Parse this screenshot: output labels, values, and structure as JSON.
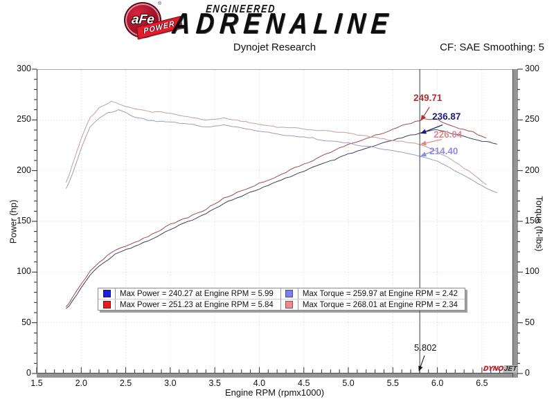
{
  "header": {
    "badge_text": "aFe",
    "badge_reg": "®",
    "banner_text": "POWER",
    "brand_line1": "ENGINEERED",
    "brand_line2": "ADRENALINE"
  },
  "subtitle_center": "Dynojet Research",
  "subtitle_right": "CF: SAE Smoothing: 5",
  "watermark": {
    "part1": "DYNO",
    "part2": "JET"
  },
  "chart_data": {
    "type": "line",
    "title": "Dynojet Research",
    "xlabel": "Engine RPM (rpmx1000)",
    "ylabel_left": "Power (hp)",
    "ylabel_right": "Torque (ft-lbs)",
    "xlim": [
      1.5,
      6.843
    ],
    "ylim_left": [
      0,
      300
    ],
    "ylim_right": [
      0,
      300
    ],
    "x_ticks": [
      "1.5",
      "2.0",
      "2.5",
      "3.0",
      "3.5",
      "4.0",
      "4.5",
      "5.0",
      "5.5",
      "6.0",
      "6.5"
    ],
    "y_ticks": [
      "0",
      "50",
      "100",
      "150",
      "200",
      "250",
      "300"
    ],
    "grid": "dotted every 0.5 rpm / 50 units",
    "cursor": {
      "rpm": 5.802,
      "label": "5.802"
    },
    "series": [
      {
        "key": "power_baseline",
        "name": "Power baseline (blue)",
        "axis": "left",
        "color": "#3d3d66",
        "points": [
          [
            1.83,
            63.4
          ],
          [
            1.9,
            70.9
          ],
          [
            2.0,
            84.5
          ],
          [
            2.1,
            97.2
          ],
          [
            2.2,
            105.6
          ],
          [
            2.3,
            112.5
          ],
          [
            2.42,
            119.8
          ],
          [
            2.6,
            125.3
          ],
          [
            2.8,
            132.8
          ],
          [
            3.0,
            141.7
          ],
          [
            3.2,
            149.9
          ],
          [
            3.4,
            157.3
          ],
          [
            3.6,
            168.0
          ],
          [
            3.8,
            175.1
          ],
          [
            4.0,
            182.0
          ],
          [
            4.2,
            188.8
          ],
          [
            4.4,
            196.0
          ],
          [
            4.6,
            203.2
          ],
          [
            4.8,
            209.3
          ],
          [
            5.0,
            216.1
          ],
          [
            5.2,
            221.8
          ],
          [
            5.4,
            227.2
          ],
          [
            5.6,
            232.4
          ],
          [
            5.802,
            236.87
          ],
          [
            5.99,
            240.27
          ],
          [
            6.2,
            236.1
          ],
          [
            6.4,
            231.5
          ],
          [
            6.55,
            228.3
          ],
          [
            6.67,
            226.1
          ]
        ]
      },
      {
        "key": "power_afe",
        "name": "Power aFe (red)",
        "axis": "left",
        "color": "#9e4b4b",
        "points": [
          [
            1.83,
            65.5
          ],
          [
            1.9,
            74.2
          ],
          [
            2.0,
            88.3
          ],
          [
            2.1,
            100.8
          ],
          [
            2.2,
            109.7
          ],
          [
            2.34,
            119.4
          ],
          [
            2.45,
            123.6
          ],
          [
            2.6,
            129.2
          ],
          [
            2.8,
            137.5
          ],
          [
            3.0,
            146.8
          ],
          [
            3.2,
            154.1
          ],
          [
            3.4,
            161.8
          ],
          [
            3.6,
            172.7
          ],
          [
            3.8,
            180.1
          ],
          [
            4.0,
            187.3
          ],
          [
            4.2,
            194.4
          ],
          [
            4.4,
            202.7
          ],
          [
            4.6,
            210.2
          ],
          [
            4.8,
            218.4
          ],
          [
            5.0,
            225.6
          ],
          [
            5.2,
            231.7
          ],
          [
            5.4,
            237.5
          ],
          [
            5.6,
            244.2
          ],
          [
            5.802,
            249.71
          ],
          [
            5.84,
            251.23
          ],
          [
            6.0,
            250.2
          ],
          [
            6.2,
            242.5
          ],
          [
            6.4,
            238.0
          ],
          [
            6.55,
            232.0
          ]
        ]
      },
      {
        "key": "torque_baseline",
        "name": "Torque baseline (light blue)",
        "axis": "right",
        "color": "#9b9bc7",
        "points": [
          [
            1.83,
            182
          ],
          [
            1.9,
            196
          ],
          [
            2.0,
            222
          ],
          [
            2.1,
            243
          ],
          [
            2.2,
            252
          ],
          [
            2.3,
            257
          ],
          [
            2.42,
            259.97
          ],
          [
            2.6,
            253
          ],
          [
            2.8,
            249
          ],
          [
            3.0,
            248
          ],
          [
            3.2,
            246
          ],
          [
            3.4,
            243
          ],
          [
            3.6,
            245
          ],
          [
            3.8,
            242
          ],
          [
            4.0,
            239
          ],
          [
            4.2,
            236
          ],
          [
            4.4,
            234
          ],
          [
            4.6,
            232
          ],
          [
            4.8,
            229
          ],
          [
            5.0,
            227
          ],
          [
            5.2,
            224
          ],
          [
            5.4,
            221
          ],
          [
            5.6,
            218
          ],
          [
            5.802,
            214.4
          ],
          [
            6.0,
            209
          ],
          [
            6.2,
            200
          ],
          [
            6.4,
            190
          ],
          [
            6.55,
            183
          ],
          [
            6.67,
            178
          ]
        ]
      },
      {
        "key": "torque_afe",
        "name": "Torque aFe (salmon)",
        "axis": "right",
        "color": "#c99c9c",
        "points": [
          [
            1.83,
            188
          ],
          [
            1.9,
            205
          ],
          [
            2.0,
            232
          ],
          [
            2.1,
            252
          ],
          [
            2.2,
            262
          ],
          [
            2.34,
            268.01
          ],
          [
            2.45,
            265
          ],
          [
            2.6,
            261
          ],
          [
            2.8,
            258
          ],
          [
            3.0,
            257
          ],
          [
            3.2,
            253
          ],
          [
            3.4,
            250
          ],
          [
            3.6,
            252
          ],
          [
            3.8,
            249
          ],
          [
            4.0,
            246
          ],
          [
            4.2,
            243
          ],
          [
            4.4,
            242
          ],
          [
            4.6,
            240
          ],
          [
            4.8,
            239
          ],
          [
            5.0,
            237
          ],
          [
            5.2,
            234
          ],
          [
            5.4,
            231
          ],
          [
            5.6,
            229
          ],
          [
            5.802,
            226.04
          ],
          [
            6.0,
            219
          ],
          [
            6.2,
            208
          ],
          [
            6.4,
            197
          ],
          [
            6.55,
            186
          ]
        ]
      }
    ],
    "callouts": [
      {
        "label": "249.71",
        "value": 249.71,
        "series": "power_afe",
        "color": "#b03030"
      },
      {
        "label": "236.87",
        "value": 236.87,
        "series": "power_baseline",
        "color": "#1a1a80"
      },
      {
        "label": "226.04",
        "value": 226.04,
        "series": "torque_afe",
        "color": "#e08888"
      },
      {
        "label": "214.40",
        "value": 214.4,
        "series": "torque_baseline",
        "color": "#8d8de0"
      }
    ],
    "legend": [
      {
        "swatch": "#1d1ddf",
        "text": "Max Power = 240.27 at Engine RPM = 5.99"
      },
      {
        "swatch": "#e81c1c",
        "text": "Max Power = 251.23 at Engine RPM = 5.84"
      },
      {
        "swatch": "#7d7df0",
        "text": "Max Torque = 259.97 at Engine RPM = 2.42"
      },
      {
        "swatch": "#f28a8a",
        "text": "Max Torque = 268.01 at Engine RPM = 2.34"
      }
    ],
    "max_values": {
      "max_power_baseline": {
        "value": 240.27,
        "rpm": 5.99
      },
      "max_power_afe": {
        "value": 251.23,
        "rpm": 5.84
      },
      "max_torque_baseline": {
        "value": 259.97,
        "rpm": 2.42
      },
      "max_torque_afe": {
        "value": 268.01,
        "rpm": 2.34
      }
    }
  }
}
